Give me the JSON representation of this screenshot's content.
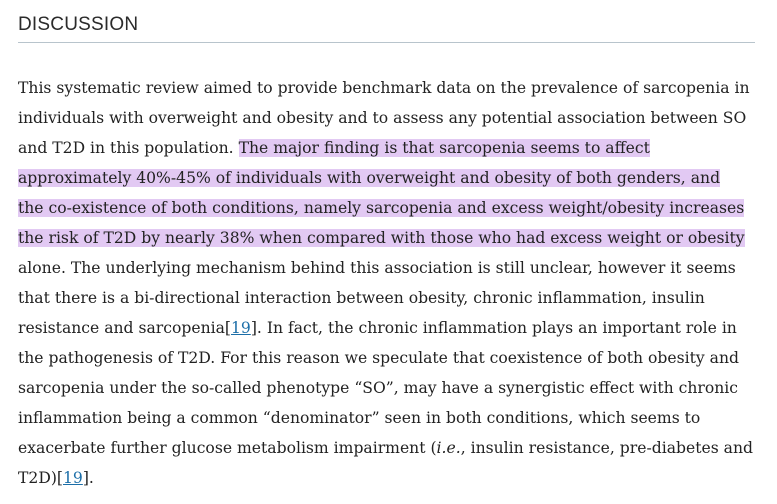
{
  "section": {
    "title": "DISCUSSION"
  },
  "paragraph": {
    "line1": "This systematic review aimed to provide benchmark data on the prevalence of sarcopenia in",
    "line2": "individuals with overweight and obesity and to assess any potential association between SO",
    "line3_plain": "and T2D in this population. ",
    "line3_hl": "The major finding is that sarcopenia seems to affect",
    "line4_hl": "approximately 40%-45% of individuals with overweight and obesity of both genders, and",
    "line5_hl": "the co-existence of both conditions, namely sarcopenia and excess weight/obesity increases",
    "line6_hl": "the risk of T2D by nearly 38% when compared with those who had excess weight or obesity",
    "line7": "alone. The underlying mechanism behind this association is still unclear, however it seems",
    "line8": "that there is a bi-directional interaction between obesity, chronic inflammation, insulin",
    "line9_pre": "resistance and sarcopenia[",
    "line9_ref": "19",
    "line9_post": "]. In fact, the chronic inflammation plays an important role in",
    "line10": "the pathogenesis of T2D. For this reason we speculate that coexistence of both obesity and",
    "line11": "sarcopenia under the so-called phenotype “SO”, may have a synergistic effect with chronic",
    "line12": "inflammation being a common “denominator” seen in both conditions, which seems to",
    "line13_pre": "exacerbate further glucose metabolism impairment (",
    "line13_ie": "i.e.",
    "line13_post": ", insulin resistance, pre-diabetes and",
    "line14_pre": "T2D)[",
    "line14_ref": "19",
    "line14_post": "]."
  },
  "colors": {
    "highlight": "#e2c9f3",
    "link": "#1b6ea8",
    "rule": "#b8c4cc"
  }
}
